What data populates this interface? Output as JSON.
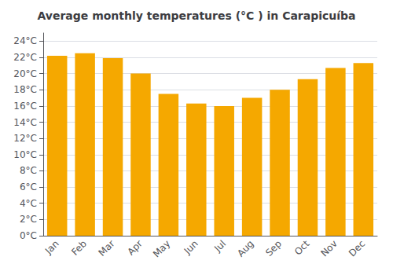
{
  "chart_data": {
    "type": "bar",
    "title": "Average monthly temperatures (°C ) in Carapicuíba",
    "categories": [
      "Jan",
      "Feb",
      "Mar",
      "Apr",
      "May",
      "Jun",
      "Jul",
      "Aug",
      "Sep",
      "Oct",
      "Nov",
      "Dec"
    ],
    "values": [
      22.2,
      22.5,
      21.9,
      20.0,
      17.5,
      16.3,
      16.0,
      17.0,
      18.0,
      19.3,
      20.7,
      21.3
    ],
    "color": "#F5A800",
    "ylim": [
      0,
      25
    ],
    "yticks": [
      {
        "value": 0,
        "label": "0°C"
      },
      {
        "value": 2,
        "label": "2°C"
      },
      {
        "value": 4,
        "label": "4°C"
      },
      {
        "value": 6,
        "label": "6°C"
      },
      {
        "value": 8,
        "label": "8°C"
      },
      {
        "value": 10,
        "label": "10°C"
      },
      {
        "value": 12,
        "label": "12°C"
      },
      {
        "value": 14,
        "label": "14°C"
      },
      {
        "value": 16,
        "label": "16°C"
      },
      {
        "value": 18,
        "label": "18°C"
      },
      {
        "value": 20,
        "label": "20°C"
      },
      {
        "value": 22,
        "label": "22°C"
      },
      {
        "value": 24,
        "label": "24°C"
      }
    ],
    "grid": true
  }
}
